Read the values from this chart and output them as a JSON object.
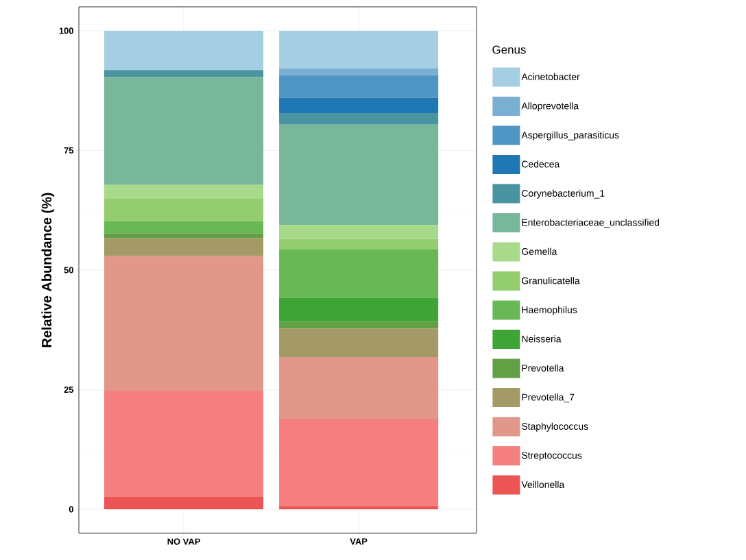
{
  "chart_data": {
    "type": "bar",
    "stacked": true,
    "ylabel": "Relative Abundance (%)",
    "legend_title": "Genus",
    "categories": [
      "NO VAP",
      "VAP"
    ],
    "ylim": [
      -5,
      105
    ],
    "yticks": [
      0,
      25,
      50,
      75,
      100
    ],
    "grid": true,
    "legend": "right",
    "series": [
      {
        "name": "Veillonella",
        "color": "#ed5454",
        "values": [
          2.6,
          0.7
        ]
      },
      {
        "name": "Streptococcus",
        "color": "#f47f7e",
        "values": [
          22.2,
          18.2
        ]
      },
      {
        "name": "Staphylococcus",
        "color": "#e1988a",
        "values": [
          28.1,
          12.9
        ]
      },
      {
        "name": "Prevotella_7",
        "color": "#a39a67",
        "values": [
          3.8,
          6.0
        ]
      },
      {
        "name": "Prevotella",
        "color": "#629f45",
        "values": [
          1.0,
          1.4
        ]
      },
      {
        "name": "Neisseria",
        "color": "#3ea435",
        "values": [
          0,
          5.0
        ]
      },
      {
        "name": "Haemophilus",
        "color": "#68b955",
        "values": [
          2.5,
          10.1
        ]
      },
      {
        "name": "Granulicatella",
        "color": "#93cd70",
        "values": [
          4.7,
          2.2
        ]
      },
      {
        "name": "Gemella",
        "color": "#a9d98b",
        "values": [
          2.9,
          2.9
        ]
      },
      {
        "name": "Enterobacteriaceae_unclassified",
        "color": "#79b79a",
        "values": [
          22.5,
          21.0
        ]
      },
      {
        "name": "Corynebacterium_1",
        "color": "#4a94a2",
        "values": [
          1.5,
          2.4
        ]
      },
      {
        "name": "Cedecea",
        "color": "#1f78b4",
        "values": [
          0,
          3.2
        ]
      },
      {
        "name": "Aspergillus_parasiticus",
        "color": "#4f96c4",
        "values": [
          0,
          4.7
        ]
      },
      {
        "name": "Alloprevotella",
        "color": "#7bafd2",
        "values": [
          0,
          1.4
        ]
      },
      {
        "name": "Acinetobacter",
        "color": "#a6cee3",
        "values": [
          8.2,
          7.9
        ]
      }
    ]
  }
}
